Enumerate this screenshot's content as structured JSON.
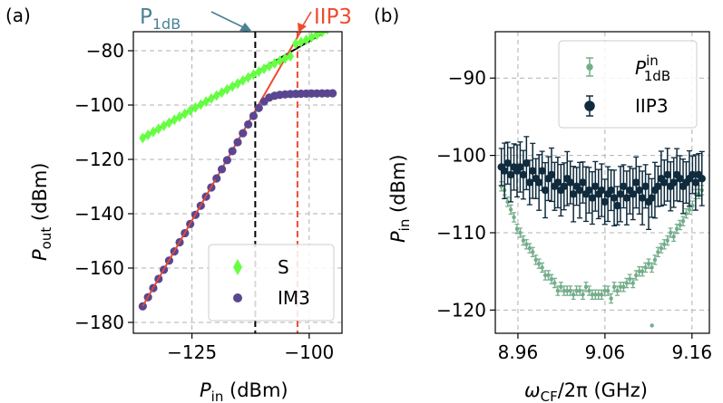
{
  "colors": {
    "S": "#66ff44",
    "IM3": "#5a4690",
    "fit": "#ef4a2e",
    "linear": "#000000",
    "P1dB_label": "#4a8194",
    "IIP3_label": "#ef4a2e",
    "P1dB_in": "#74ad8b",
    "IIP3_b": "#0f2b3d",
    "grid": "#b0b0b0"
  },
  "chart_data": [
    {
      "panel": "(a)",
      "type": "scatter",
      "xlabel_main": "P",
      "xlabel_sub": "in",
      "xlabel_unit": " (dBm)",
      "ylabel_main": "P",
      "ylabel_sub": "out",
      "ylabel_unit": " (dBm)",
      "xlim": [
        -137.5,
        -93
      ],
      "ylim": [
        -184,
        -73
      ],
      "xticks": [
        -125,
        -100
      ],
      "xtick_labels": [
        "−125",
        "−100"
      ],
      "yticks": [
        -80,
        -100,
        -120,
        -140,
        -160,
        -180
      ],
      "ytick_labels": [
        "−80",
        "−100",
        "−120",
        "−140",
        "−160",
        "−180"
      ],
      "marker_x_start": -135.5,
      "marker_x_step": 1.125,
      "marker_count": 37,
      "S_sat_x": -130.3,
      "S_gain": 1.0,
      "S_offset": 23.5,
      "S_psat": -79.5,
      "IM3_slope": 3.0,
      "IM3_offset": 232.5,
      "IM3_sat_y": -95.5,
      "fit_slope": 3.0,
      "fit_offset": 232.5,
      "fit_x_range": [
        -135.5,
        -101.5
      ],
      "linear_x_range": [
        -135.5,
        -93
      ],
      "P1dB_x": -111.5,
      "IIP3_x": -102.5,
      "annotations": {
        "P1dB_main": "P",
        "P1dB_sub": "1dB",
        "IIP3": "IIP3"
      },
      "series": [
        {
          "name": "S",
          "marker": "diamond"
        },
        {
          "name": "IM3",
          "marker": "circle"
        }
      ],
      "legend_position": "lower-right"
    },
    {
      "panel": "(b)",
      "type": "errorbar",
      "xlabel_main": "ω",
      "xlabel_sub": "CF",
      "xlabel_unit": "/2π (GHz)",
      "ylabel_main": "P",
      "ylabel_sub": "in",
      "ylabel_unit": " (dBm)",
      "xlim": [
        8.934,
        9.18
      ],
      "ylim": [
        -123,
        -84
      ],
      "xticks": [
        8.96,
        9.06,
        9.16
      ],
      "xtick_labels": [
        "8.96",
        "9.06",
        "9.16"
      ],
      "yticks": [
        -90,
        -100,
        -110,
        -120
      ],
      "ytick_labels": [
        "−90",
        "−100",
        "−110",
        "−120"
      ],
      "x_start": 8.941,
      "x_step": 0.0036,
      "point_count": 65,
      "P1dB_in_values": [
        -104.0,
        -104.5,
        -106.0,
        -107.0,
        -108.0,
        -109.5,
        -110.0,
        -111.0,
        -111.5,
        -112.0,
        -112.5,
        -113.5,
        -114.0,
        -114.5,
        -115.5,
        -115.5,
        -116.0,
        -116.5,
        -117.5,
        -117.0,
        -117.5,
        -117.5,
        -117.5,
        -118.0,
        -117.5,
        -117.5,
        -118.0,
        -117.0,
        -117.5,
        -118.0,
        -118.0,
        -118.0,
        -118.0,
        -117.5,
        -117.5,
        -118.5,
        -117.0,
        -117.5,
        -117.0,
        -117.0,
        -116.5,
        -116.0,
        -116.5,
        -115.5,
        -115.0,
        -115.0,
        -114.5,
        -114.0,
        -114.5,
        -113.5,
        -112.5,
        -112.0,
        -111.5,
        -111.0,
        -110.0,
        -110.5,
        -109.5,
        -109.0,
        -108.5,
        -107.5,
        -107.0,
        -106.5,
        -105.0,
        -105.0,
        -104.5
      ],
      "P1dB_in_err": 0.6,
      "IIP3_values": [
        -101.5,
        -102.0,
        -101.0,
        -102.5,
        -101.5,
        -102.0,
        -101.5,
        -102.5,
        -101.0,
        -103.5,
        -102.0,
        -103.0,
        -103.5,
        -102.0,
        -104.5,
        -103.0,
        -102.5,
        -104.0,
        -103.5,
        -104.5,
        -104.0,
        -103.0,
        -103.5,
        -105.0,
        -104.0,
        -104.5,
        -103.5,
        -105.0,
        -104.5,
        -105.5,
        -104.0,
        -105.0,
        -104.5,
        -106.0,
        -105.0,
        -104.5,
        -105.5,
        -106.5,
        -105.0,
        -104.0,
        -105.5,
        -104.5,
        -105.0,
        -103.5,
        -104.5,
        -105.5,
        -104.0,
        -106.0,
        -105.5,
        -104.5,
        -104.0,
        -103.0,
        -103.5,
        -102.5,
        -104.0,
        -103.5,
        -102.5,
        -103.0,
        -104.0,
        -103.5,
        -103.0,
        -102.5,
        -103.5,
        -102.5,
        -103.0
      ],
      "IIP3_err": 3.0,
      "series": [
        {
          "name_main": "P",
          "name_sup": "in",
          "name_sub": "1dB",
          "marker": "small-circle"
        },
        {
          "name": "IIP3",
          "marker": "circle"
        }
      ],
      "legend_position": "top-right"
    }
  ]
}
